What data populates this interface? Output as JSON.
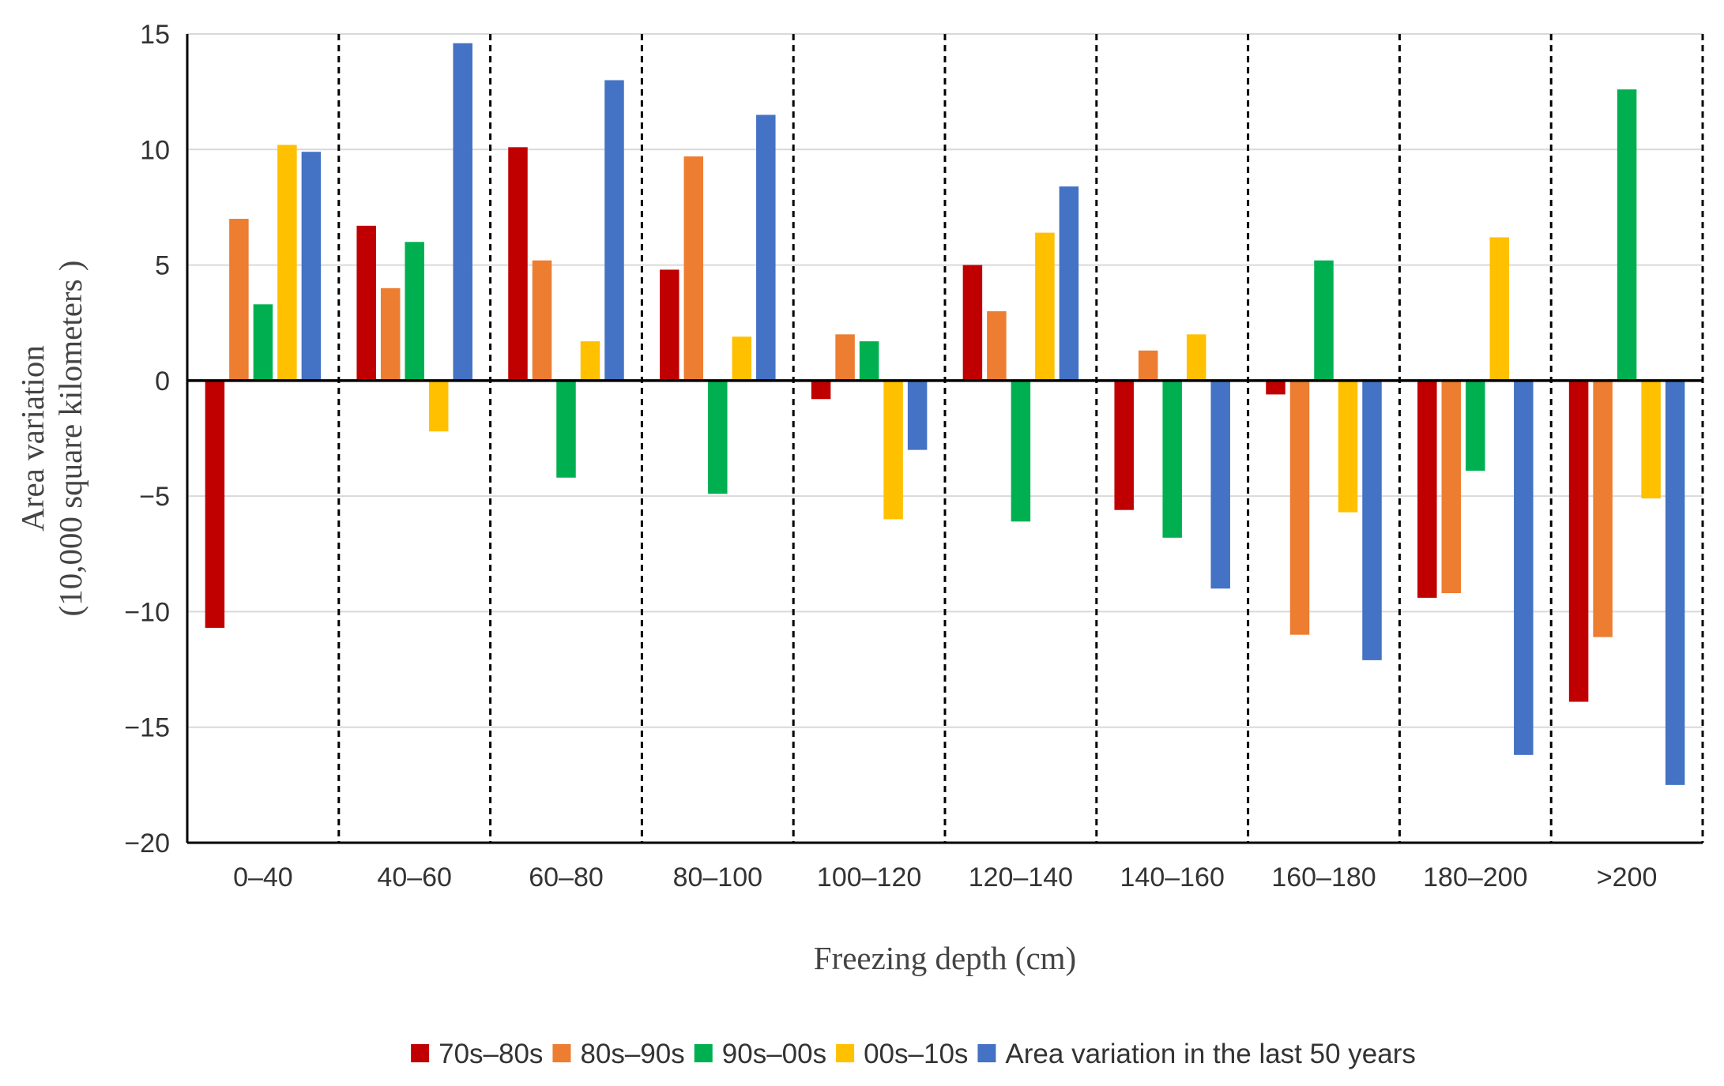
{
  "chart_data": {
    "type": "bar",
    "title": "",
    "xlabel": "Freezing depth (cm)",
    "ylabel_lines": [
      "Area variation",
      "(10,000 square kilometers )"
    ],
    "ylim": [
      -20,
      15
    ],
    "yticks": [
      15,
      10,
      5,
      0,
      -5,
      -10,
      -15,
      -20
    ],
    "ytick_labels": [
      "15",
      "10",
      "5",
      "0",
      "−5",
      "−10",
      "−15",
      "−20"
    ],
    "grid": true,
    "group_separators": "dashed",
    "legend_position": "bottom",
    "categories": [
      "0–40",
      "40–60",
      "60–80",
      "80–100",
      "100–120",
      "120–140",
      "140–160",
      "160–180",
      "180–200",
      ">200"
    ],
    "series": [
      {
        "name": "70s–80s",
        "color": "#C00000",
        "values": [
          -10.7,
          6.7,
          10.1,
          4.8,
          -0.8,
          5.0,
          -5.6,
          -0.6,
          -9.4,
          -13.9
        ]
      },
      {
        "name": "80s–90s",
        "color": "#ED7D31",
        "values": [
          7.0,
          4.0,
          5.2,
          9.7,
          2.0,
          3.0,
          1.3,
          -11.0,
          -9.2,
          -11.1
        ]
      },
      {
        "name": "90s–00s",
        "color": "#00B050",
        "values": [
          3.3,
          6.0,
          -4.2,
          -4.9,
          1.7,
          -6.1,
          -6.8,
          5.2,
          -3.9,
          12.6
        ]
      },
      {
        "name": "00s–10s",
        "color": "#FFC000",
        "values": [
          10.2,
          -2.2,
          1.7,
          1.9,
          -6.0,
          6.4,
          2.0,
          -5.7,
          6.2,
          -5.1
        ]
      },
      {
        "name": "Area variation in the last 50 years",
        "color": "#4472C4",
        "values": [
          9.9,
          14.6,
          13.0,
          11.5,
          -3.0,
          8.4,
          -9.0,
          -12.1,
          -16.2,
          -17.5
        ]
      }
    ]
  }
}
